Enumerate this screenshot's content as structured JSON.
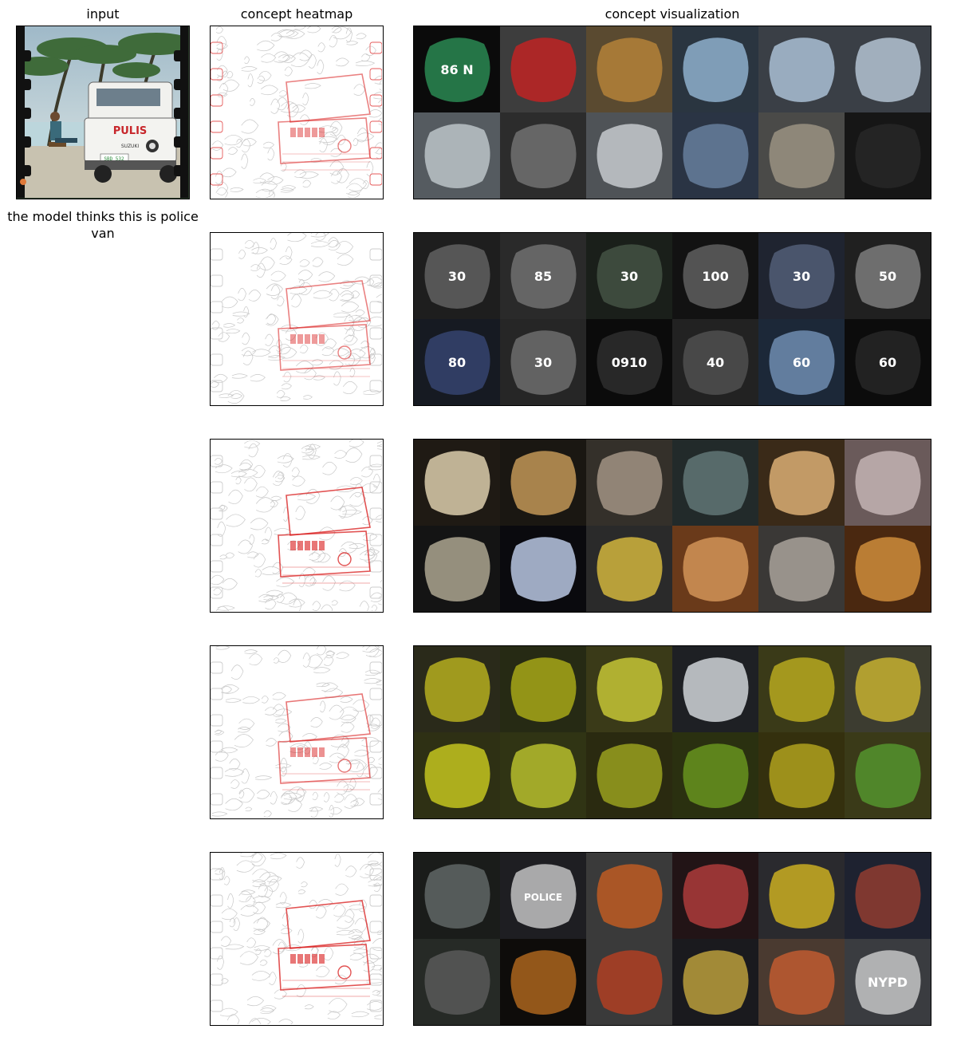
{
  "headers": {
    "input": "input",
    "heatmap": "concept heatmap",
    "visualization": "concept visualization"
  },
  "prediction_caption": "the model thinks this is police van",
  "input_image": {
    "van_text": "PULIS",
    "van_brand": "SUZUKI",
    "plate": "SBD 532"
  },
  "concepts": [
    {
      "heat_focus": "upper-left edges and van front",
      "tiles": [
        {
          "bg": "#0b0b0b",
          "fg": "#2f9a5c",
          "label": "86 N"
        },
        {
          "bg": "#3d3d3d",
          "fg": "#d22020",
          "label": ""
        },
        {
          "bg": "#5a4a30",
          "fg": "#c08a3a",
          "label": ""
        },
        {
          "bg": "#2a3540",
          "fg": "#9cc0df",
          "label": ""
        },
        {
          "bg": "#3a3f46",
          "fg": "#b9d2e8",
          "label": ""
        },
        {
          "bg": "#3a3f46",
          "fg": "#c4d6e6",
          "label": ""
        },
        {
          "bg": "#555b60",
          "fg": "#c9d1d6",
          "label": ""
        },
        {
          "bg": "#2c2c2c",
          "fg": "#7a7a7a",
          "label": ""
        },
        {
          "bg": "#4f5357",
          "fg": "#d6dade",
          "label": ""
        },
        {
          "bg": "#2a3444",
          "fg": "#6f88a8",
          "label": ""
        },
        {
          "bg": "#4a4a48",
          "fg": "#a69c8a",
          "label": ""
        },
        {
          "bg": "#161616",
          "fg": "#2a2a2a",
          "label": ""
        }
      ]
    },
    {
      "heat_focus": "dashboard / gauges",
      "tiles": [
        {
          "bg": "#1e1e1e",
          "fg": "#6a6a6a",
          "label": "30"
        },
        {
          "bg": "#2a2a2a",
          "fg": "#7a7a7a",
          "label": "85"
        },
        {
          "bg": "#1a1f1a",
          "fg": "#4a5a4a",
          "label": "30"
        },
        {
          "bg": "#121212",
          "fg": "#6a6a6a",
          "label": "100"
        },
        {
          "bg": "#1f2430",
          "fg": "#5a6680",
          "label": "30"
        },
        {
          "bg": "#202020",
          "fg": "#888888",
          "label": "50"
        },
        {
          "bg": "#161a22",
          "fg": "#3a4a7a",
          "label": "80"
        },
        {
          "bg": "#262626",
          "fg": "#777777",
          "label": "30"
        },
        {
          "bg": "#0b0b0b",
          "fg": "#333333",
          "label": "0910"
        },
        {
          "bg": "#222222",
          "fg": "#555555",
          "label": "40"
        },
        {
          "bg": "#1c2838",
          "fg": "#7a9ac0",
          "label": "60"
        },
        {
          "bg": "#0c0c0c",
          "fg": "#2a2a2a",
          "label": "60"
        }
      ]
    },
    {
      "heat_focus": "lights at night",
      "tiles": [
        {
          "bg": "#1f1a14",
          "fg": "#f5e6c0",
          "label": ""
        },
        {
          "bg": "#1a1712",
          "fg": "#d8a860",
          "label": ""
        },
        {
          "bg": "#34302a",
          "fg": "#b0a090",
          "label": ""
        },
        {
          "bg": "#222a2a",
          "fg": "#6a8080",
          "label": ""
        },
        {
          "bg": "#3a2a18",
          "fg": "#f0c080",
          "label": ""
        },
        {
          "bg": "#6a5a5a",
          "fg": "#d0c0c0",
          "label": ""
        },
        {
          "bg": "#141414",
          "fg": "#c0b8a0",
          "label": ""
        },
        {
          "bg": "#0a0a0e",
          "fg": "#d0e0ff",
          "label": ""
        },
        {
          "bg": "#2a2a2a",
          "fg": "#e8c840",
          "label": ""
        },
        {
          "bg": "#6a3a1a",
          "fg": "#e0a060",
          "label": ""
        },
        {
          "bg": "#3a3836",
          "fg": "#b8b0a8",
          "label": ""
        },
        {
          "bg": "#4a2810",
          "fg": "#e09a40",
          "label": ""
        }
      ]
    },
    {
      "heat_focus": "yellow fields",
      "tiles": [
        {
          "bg": "#2a2a1a",
          "fg": "#c8c020",
          "label": ""
        },
        {
          "bg": "#262a14",
          "fg": "#b8b818",
          "label": ""
        },
        {
          "bg": "#3a3a18",
          "fg": "#d8d83a",
          "label": ""
        },
        {
          "bg": "#1e2024",
          "fg": "#e8ecf0",
          "label": ""
        },
        {
          "bg": "#3a3a18",
          "fg": "#c8b820",
          "label": ""
        },
        {
          "bg": "#3c3c30",
          "fg": "#d8c030",
          "label": ""
        },
        {
          "bg": "#2e3014",
          "fg": "#d8d820",
          "label": ""
        },
        {
          "bg": "#303414",
          "fg": "#c8d030",
          "label": ""
        },
        {
          "bg": "#2a2a10",
          "fg": "#a8b020",
          "label": ""
        },
        {
          "bg": "#2a3010",
          "fg": "#70a020",
          "label": ""
        },
        {
          "bg": "#34300e",
          "fg": "#c0b020",
          "label": ""
        },
        {
          "bg": "#3a3a18",
          "fg": "#58a030",
          "label": ""
        }
      ]
    },
    {
      "heat_focus": "vehicles / trucks",
      "tiles": [
        {
          "bg": "#1a1c1a",
          "fg": "#6a7070",
          "label": ""
        },
        {
          "bg": "#1e1e22",
          "fg": "#d8d8d8",
          "label": "POLICE"
        },
        {
          "bg": "#3a3a3a",
          "fg": "#d06020",
          "label": ""
        },
        {
          "bg": "#221416",
          "fg": "#c04040",
          "label": ""
        },
        {
          "bg": "#2a2a2e",
          "fg": "#e0c020",
          "label": ""
        },
        {
          "bg": "#1e2230",
          "fg": "#a04030",
          "label": ""
        },
        {
          "bg": "#262a26",
          "fg": "#606060",
          "label": ""
        },
        {
          "bg": "#0e0c0a",
          "fg": "#c07020",
          "label": ""
        },
        {
          "bg": "#3a3a3a",
          "fg": "#c04020",
          "label": ""
        },
        {
          "bg": "#1a1a1e",
          "fg": "#d0b040",
          "label": ""
        },
        {
          "bg": "#4a3a30",
          "fg": "#d06030",
          "label": ""
        },
        {
          "bg": "#3a3c40",
          "fg": "#d8d8d8",
          "label": "NYPD"
        }
      ]
    }
  ]
}
